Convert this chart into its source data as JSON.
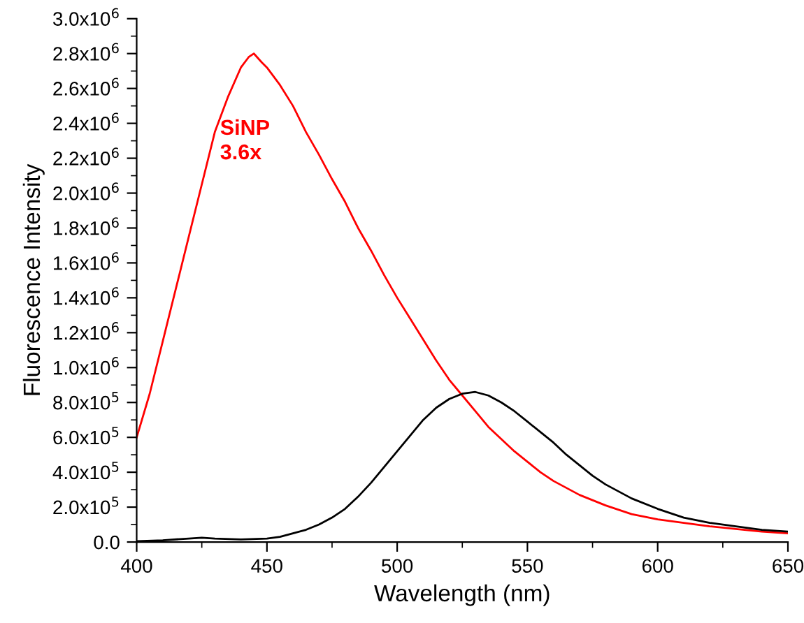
{
  "chart_data": {
    "type": "line",
    "xlabel": "Wavelength (nm)",
    "ylabel": "Fluorescence Intensity",
    "xlim": [
      400,
      650
    ],
    "xticks": [
      400,
      450,
      500,
      550,
      600,
      650
    ],
    "ylim": [
      0,
      3000000
    ],
    "yticks": [
      {
        "value": 0,
        "label": "0.0"
      },
      {
        "value": 200000,
        "label": "2.0x10$^{5}$"
      },
      {
        "value": 400000,
        "label": "4.0x10$^{5}$"
      },
      {
        "value": 600000,
        "label": "6.0x10$^{5}$"
      },
      {
        "value": 800000,
        "label": "8.0x10$^{5}$"
      },
      {
        "value": 1000000,
        "label": "1.0x10$^{6}$"
      },
      {
        "value": 1200000,
        "label": "1.2x10$^{6}$"
      },
      {
        "value": 1400000,
        "label": "1.4x10$^{6}$"
      },
      {
        "value": 1600000,
        "label": "1.6x10$^{6}$"
      },
      {
        "value": 1800000,
        "label": "1.8x10$^{6}$"
      },
      {
        "value": 2000000,
        "label": "2.0x10$^{6}$"
      },
      {
        "value": 2200000,
        "label": "2.2x10$^{6}$"
      },
      {
        "value": 2400000,
        "label": "2.4x10$^{6}$"
      },
      {
        "value": 2600000,
        "label": "2.6x10$^{6}$"
      },
      {
        "value": 2800000,
        "label": "2.8x10$^{6}$"
      },
      {
        "value": 3000000,
        "label": "3.0x10$^{6}$"
      }
    ],
    "grid": false,
    "legend": false,
    "marker": "none",
    "line_style": "solid",
    "series": [
      {
        "name": "SiNP\n3.6x",
        "color": "#ff0000",
        "x": [
          400,
          405,
          410,
          415,
          420,
          425,
          430,
          435,
          440,
          443,
          445,
          448,
          450,
          455,
          460,
          465,
          470,
          475,
          480,
          485,
          490,
          495,
          500,
          505,
          510,
          515,
          520,
          525,
          530,
          535,
          540,
          545,
          550,
          555,
          560,
          570,
          580,
          590,
          600,
          610,
          620,
          630,
          640,
          650
        ],
        "values": [
          600000,
          850000,
          1150000,
          1450000,
          1750000,
          2050000,
          2350000,
          2550000,
          2720000,
          2780000,
          2800000,
          2750000,
          2720000,
          2620000,
          2500000,
          2350000,
          2220000,
          2080000,
          1950000,
          1800000,
          1670000,
          1530000,
          1400000,
          1280000,
          1160000,
          1040000,
          930000,
          840000,
          750000,
          660000,
          590000,
          520000,
          460000,
          400000,
          350000,
          270000,
          210000,
          160000,
          130000,
          110000,
          90000,
          75000,
          60000,
          50000
        ]
      },
      {
        "color": "#000000",
        "x": [
          400,
          410,
          420,
          425,
          430,
          440,
          450,
          455,
          460,
          465,
          470,
          475,
          480,
          485,
          490,
          495,
          500,
          505,
          510,
          515,
          520,
          525,
          530,
          535,
          540,
          545,
          550,
          555,
          560,
          565,
          570,
          575,
          580,
          590,
          600,
          610,
          620,
          630,
          640,
          650
        ],
        "values": [
          5000,
          10000,
          20000,
          25000,
          20000,
          15000,
          20000,
          30000,
          50000,
          70000,
          100000,
          140000,
          190000,
          260000,
          340000,
          430000,
          520000,
          610000,
          700000,
          770000,
          820000,
          850000,
          860000,
          840000,
          800000,
          750000,
          690000,
          630000,
          570000,
          500000,
          440000,
          380000,
          330000,
          250000,
          190000,
          140000,
          110000,
          90000,
          70000,
          60000
        ]
      }
    ]
  }
}
